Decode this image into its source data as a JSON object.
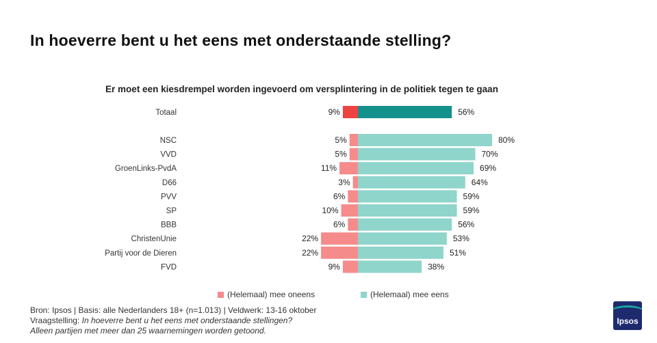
{
  "title": "In hoeverre bent u het eens met onderstaande stelling?",
  "chart_data": {
    "type": "bar",
    "orientation": "horizontal-diverging",
    "title": "Er moet een kiesdrempel worden ingevoerd om versplintering in de politiek tegen te gaan",
    "categories": [
      "Totaal",
      "NSC",
      "VVD",
      "GroenLinks-PvdA",
      "D66",
      "PVV",
      "SP",
      "BBB",
      "ChristenUnie",
      "Partij voor de Dieren",
      "FVD"
    ],
    "series": [
      {
        "name": "(Helemaal) mee oneens",
        "values": [
          9,
          5,
          5,
          11,
          3,
          6,
          10,
          6,
          22,
          22,
          9
        ],
        "color": "#f68b8b",
        "highlight_color": "#ef4343"
      },
      {
        "name": "(Helemaal) mee eens",
        "values": [
          56,
          80,
          70,
          69,
          64,
          59,
          59,
          56,
          53,
          51,
          38
        ],
        "color": "#8fd5cb",
        "highlight_color": "#15918c"
      }
    ],
    "value_suffix": "%",
    "legend": "bottom"
  },
  "footer": {
    "line1": "Bron: Ipsos | Basis: alle Nederlanders  18+ (n=1.013)  | Veldwerk:  13-16  oktober",
    "line2_label": "Vraagstelling: ",
    "line2_text": "In hoeverre  bent u het eens met onderstaande  stellingen?",
    "line3": "Alleen partijen  met meer dan 25 waarnemingen  worden  getoond."
  },
  "logo": {
    "text": "Ipsos"
  }
}
